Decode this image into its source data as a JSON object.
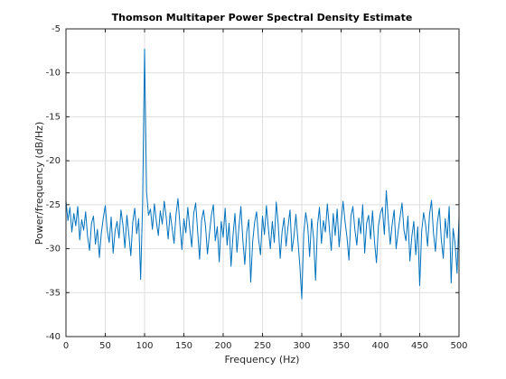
{
  "chart_data": {
    "type": "line",
    "title": "Thomson Multitaper Power Spectral Density Estimate",
    "xlabel": "Frequency (Hz)",
    "ylabel": "Power/frequency (dB/Hz)",
    "color": "#0072bd",
    "grid": true,
    "xlim": [
      0,
      500
    ],
    "xticks": [
      0,
      50,
      100,
      150,
      200,
      250,
      300,
      350,
      400,
      450,
      500
    ],
    "ylim": [
      -40,
      -5
    ],
    "yticks": [
      -40,
      -35,
      -30,
      -25,
      -20,
      -15,
      -10,
      -5
    ],
    "x": [
      0,
      2.5,
      5,
      7.5,
      10,
      12.5,
      15,
      17.5,
      20,
      22.5,
      25,
      27.5,
      30,
      32.5,
      35,
      37.5,
      40,
      42.5,
      45,
      47.5,
      50,
      52.5,
      55,
      57.5,
      60,
      62.5,
      65,
      67.5,
      70,
      72.5,
      75,
      77.5,
      80,
      82.5,
      85,
      87.5,
      90,
      92.5,
      95,
      97.5,
      100,
      102.5,
      105,
      107.5,
      110,
      112.5,
      115,
      117.5,
      120,
      122.5,
      125,
      127.5,
      130,
      132.5,
      135,
      137.5,
      140,
      142.5,
      145,
      147.5,
      150,
      152.5,
      155,
      157.5,
      160,
      162.5,
      165,
      167.5,
      170,
      172.5,
      175,
      177.5,
      180,
      182.5,
      185,
      187.5,
      190,
      192.5,
      195,
      197.5,
      200,
      202.5,
      205,
      207.5,
      210,
      212.5,
      215,
      217.5,
      220,
      222.5,
      225,
      227.5,
      230,
      232.5,
      235,
      237.5,
      240,
      242.5,
      245,
      247.5,
      250,
      252.5,
      255,
      257.5,
      260,
      262.5,
      265,
      267.5,
      270,
      272.5,
      275,
      277.5,
      280,
      282.5,
      285,
      287.5,
      290,
      292.5,
      295,
      297.5,
      300,
      302.5,
      305,
      307.5,
      310,
      312.5,
      315,
      317.5,
      320,
      322.5,
      325,
      327.5,
      330,
      332.5,
      335,
      337.5,
      340,
      342.5,
      345,
      347.5,
      350,
      352.5,
      355,
      357.5,
      360,
      362.5,
      365,
      367.5,
      370,
      372.5,
      375,
      377.5,
      380,
      382.5,
      385,
      387.5,
      390,
      392.5,
      395,
      397.5,
      400,
      402.5,
      405,
      407.5,
      410,
      412.5,
      415,
      417.5,
      420,
      422.5,
      425,
      427.5,
      430,
      432.5,
      435,
      437.5,
      440,
      442.5,
      445,
      447.5,
      450,
      452.5,
      455,
      457.5,
      460,
      462.5,
      465,
      467.5,
      470,
      472.5,
      475,
      477.5,
      480,
      482.5,
      485,
      487.5,
      490,
      492.5,
      495,
      497.5,
      500
    ],
    "values": [
      -24.5,
      -26.8,
      -25.3,
      -28.1,
      -26.0,
      -27.4,
      -25.2,
      -29.0,
      -26.7,
      -27.9,
      -25.8,
      -28.6,
      -30.2,
      -27.1,
      -26.3,
      -29.5,
      -27.8,
      -31.0,
      -28.2,
      -26.5,
      -25.1,
      -27.9,
      -29.3,
      -26.4,
      -30.5,
      -28.0,
      -26.9,
      -28.8,
      -25.6,
      -27.3,
      -29.9,
      -26.2,
      -28.4,
      -30.8,
      -27.0,
      -25.4,
      -28.3,
      -26.6,
      -33.5,
      -25.0,
      -7.3,
      -23.5,
      -26.2,
      -25.5,
      -27.8,
      -24.9,
      -26.9,
      -28.5,
      -25.7,
      -27.2,
      -24.6,
      -26.4,
      -28.9,
      -25.9,
      -27.6,
      -29.4,
      -26.1,
      -24.3,
      -27.3,
      -30.1,
      -26.6,
      -28.2,
      -25.3,
      -27.7,
      -29.8,
      -26.0,
      -24.8,
      -28.0,
      -31.2,
      -26.8,
      -25.6,
      -27.4,
      -30.6,
      -28.3,
      -26.2,
      -25.0,
      -29.1,
      -27.5,
      -31.5,
      -26.9,
      -28.7,
      -25.4,
      -29.6,
      -27.1,
      -32.0,
      -28.5,
      -26.0,
      -30.4,
      -27.6,
      -25.2,
      -29.0,
      -31.8,
      -28.1,
      -26.7,
      -33.8,
      -29.2,
      -27.0,
      -25.8,
      -28.9,
      -30.7,
      -26.3,
      -28.4,
      -25.1,
      -27.7,
      -30.0,
      -26.9,
      -29.3,
      -24.7,
      -27.2,
      -31.1,
      -28.0,
      -26.5,
      -29.7,
      -27.5,
      -25.6,
      -30.3,
      -28.6,
      -26.1,
      -29.0,
      -31.9,
      -35.7,
      -28.2,
      -25.9,
      -27.4,
      -30.9,
      -26.6,
      -28.8,
      -33.6,
      -27.3,
      -25.3,
      -29.4,
      -26.8,
      -28.1,
      -24.9,
      -27.6,
      -30.2,
      -26.0,
      -28.5,
      -25.5,
      -29.8,
      -27.0,
      -24.6,
      -26.9,
      -28.7,
      -31.3,
      -26.3,
      -25.2,
      -27.8,
      -29.6,
      -26.5,
      -28.3,
      -25.0,
      -30.5,
      -27.1,
      -26.2,
      -28.9,
      -25.7,
      -29.2,
      -31.6,
      -27.4,
      -26.0,
      -25.3,
      -28.4,
      -23.4,
      -26.7,
      -29.5,
      -27.2,
      -25.6,
      -30.0,
      -28.1,
      -26.4,
      -24.8,
      -27.9,
      -29.1,
      -26.3,
      -31.4,
      -28.6,
      -26.9,
      -30.7,
      -27.5,
      -34.2,
      -28.0,
      -25.9,
      -27.3,
      -29.7,
      -26.1,
      -24.5,
      -28.2,
      -30.3,
      -27.0,
      -25.4,
      -29.0,
      -31.1,
      -26.6,
      -28.8,
      -25.2,
      -33.9,
      -27.7,
      -29.4,
      -32.8,
      -26.3
    ]
  }
}
